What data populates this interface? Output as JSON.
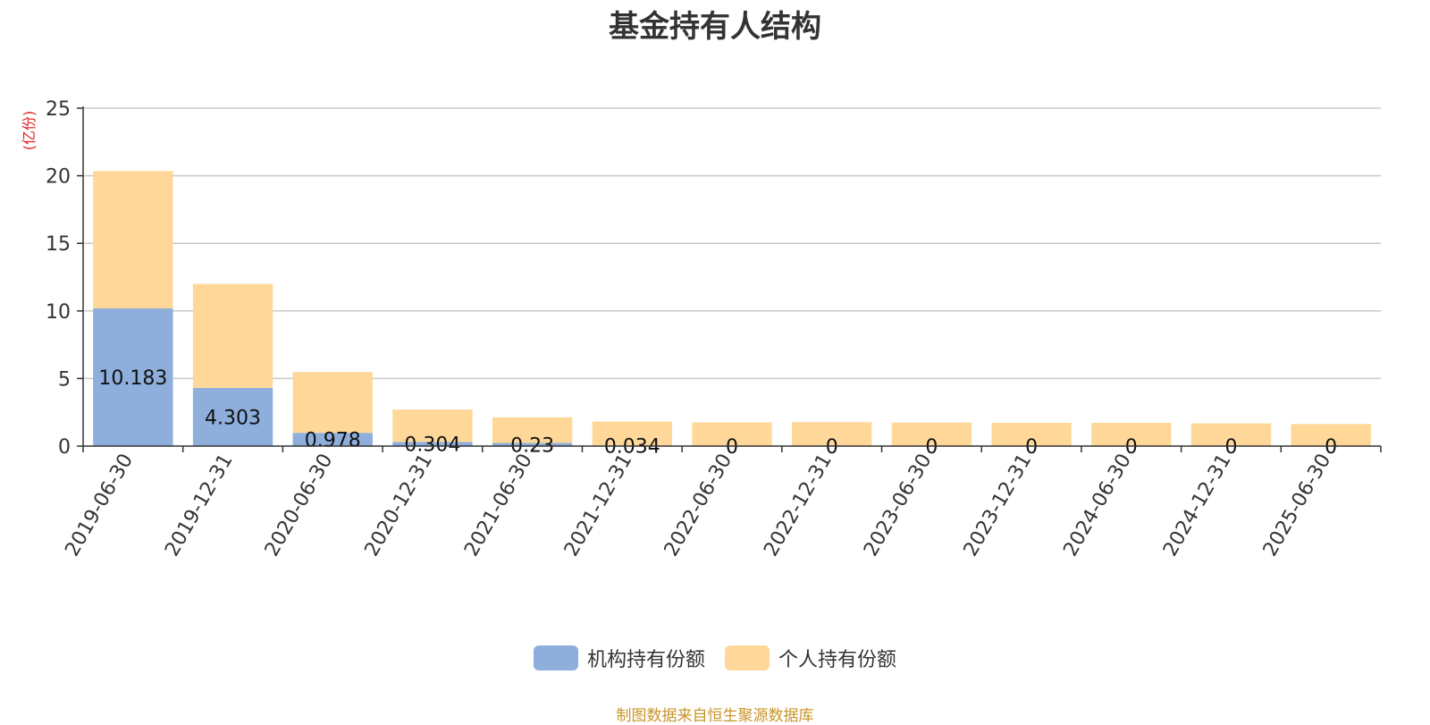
{
  "chart_data": {
    "type": "bar",
    "stacked": true,
    "title": "基金持有人结构",
    "unit_label": "(亿份)",
    "categories": [
      "2019-06-30",
      "2019-12-31",
      "2020-06-30",
      "2020-12-31",
      "2021-06-30",
      "2021-12-31",
      "2022-06-30",
      "2022-12-31",
      "2023-06-30",
      "2023-12-31",
      "2024-06-30",
      "2024-12-31",
      "2025-06-30"
    ],
    "ylim": [
      0,
      25
    ],
    "yticks": [
      0,
      5,
      10,
      15,
      20,
      25
    ],
    "grid": true,
    "legend_position": "bottom",
    "series": [
      {
        "name": "机构持有份额",
        "color": "#8eaedc",
        "values": [
          10.183,
          4.303,
          0.978,
          0.304,
          0.23,
          0.034,
          0,
          0,
          0,
          0,
          0,
          0,
          0
        ],
        "labels": [
          "10.183",
          "4.303",
          "0.978",
          "0.304",
          "0.23",
          "0.034",
          "0",
          "0",
          "0",
          "0",
          "0",
          "0",
          "0"
        ]
      },
      {
        "name": "个人持有份额",
        "color": "#ffd899",
        "values": [
          10.17,
          7.7,
          4.5,
          2.4,
          1.9,
          1.78,
          1.75,
          1.77,
          1.74,
          1.72,
          1.72,
          1.68,
          1.63
        ]
      }
    ]
  },
  "source_note": "制图数据来自恒生聚源数据库"
}
